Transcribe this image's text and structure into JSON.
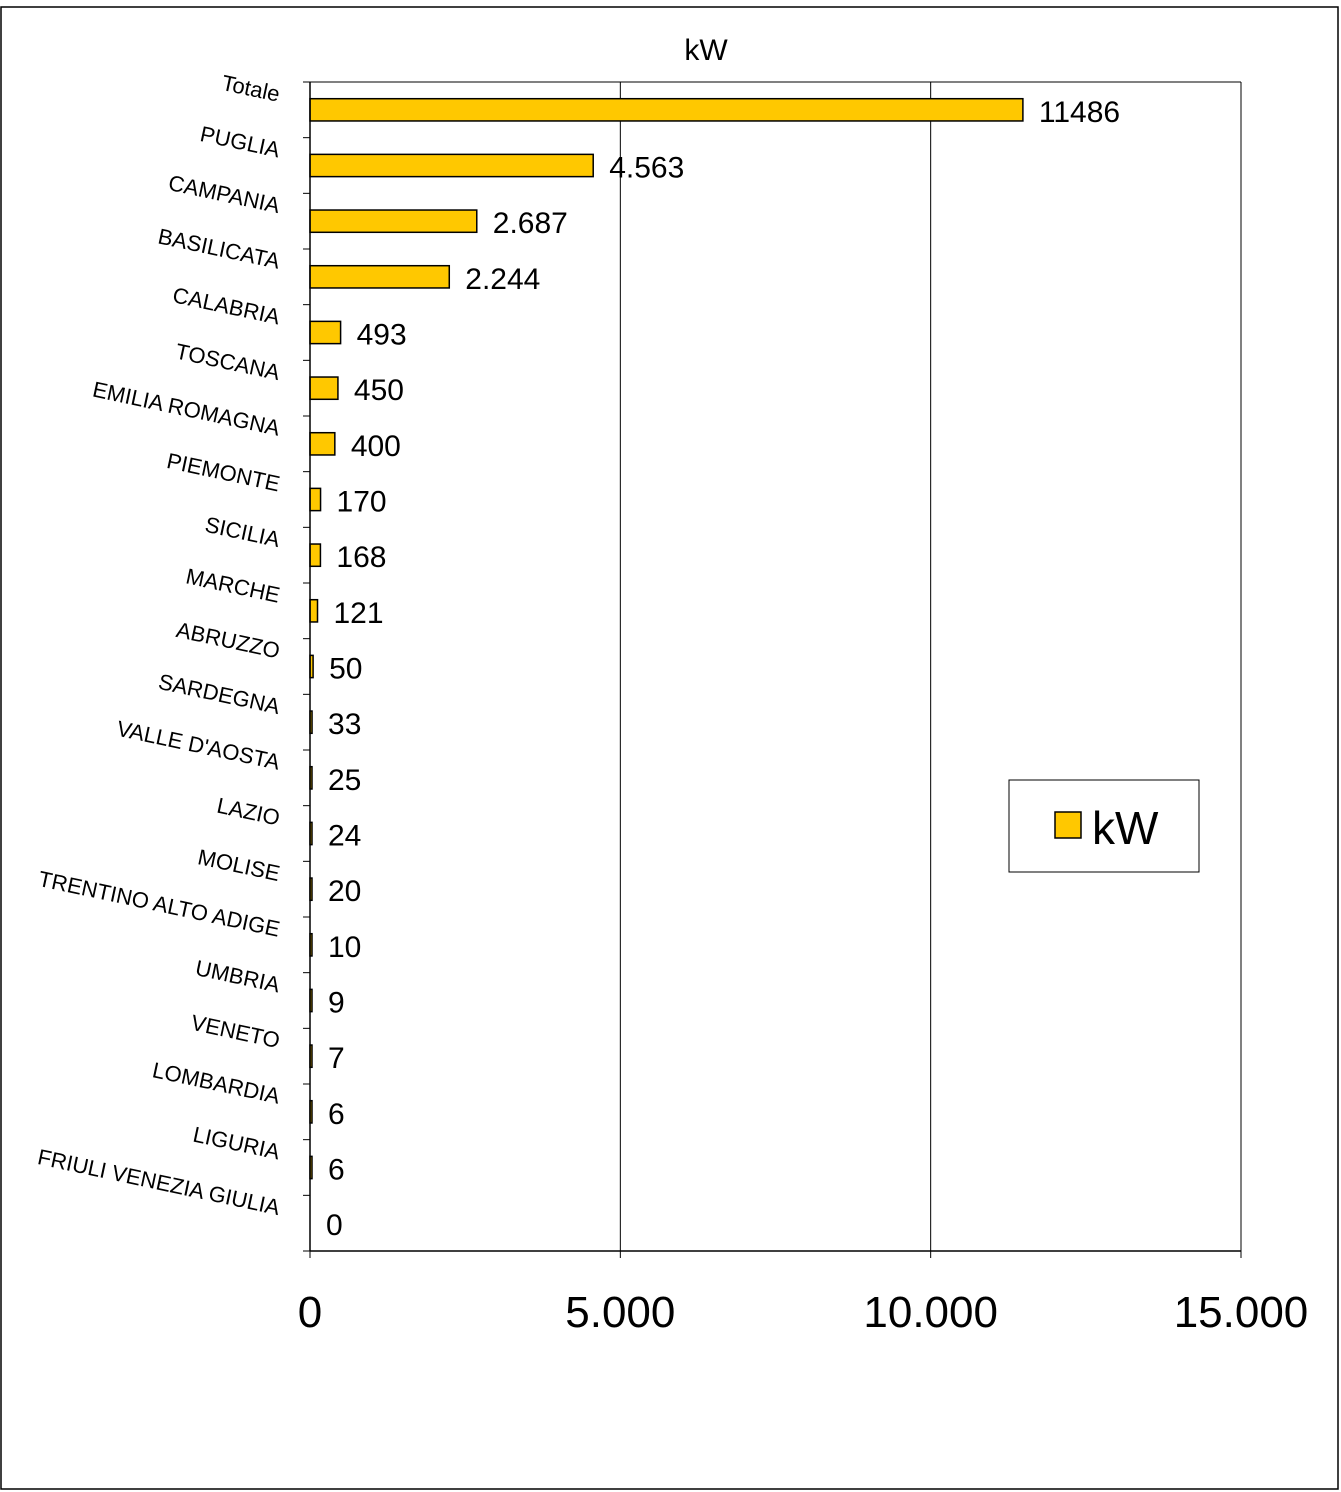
{
  "chart_data": {
    "type": "bar",
    "orientation": "horizontal",
    "title": "kW",
    "categories": [
      "Totale",
      "PUGLIA",
      "CAMPANIA",
      "BASILICATA",
      "CALABRIA",
      "TOSCANA",
      "EMILIA ROMAGNA",
      "PIEMONTE",
      "SICILIA",
      "MARCHE",
      "ABRUZZO",
      "SARDEGNA",
      "VALLE D'AOSTA",
      "LAZIO",
      "MOLISE",
      "TRENTINO ALTO ADIGE",
      "UMBRIA",
      "VENETO",
      "LOMBARDIA",
      "LIGURIA",
      "FRIULI VENEZIA GIULIA"
    ],
    "series": [
      {
        "name": "kW",
        "values": [
          11486,
          4563,
          2687,
          2244,
          493,
          450,
          400,
          170,
          168,
          121,
          50,
          33,
          25,
          24,
          20,
          10,
          9,
          7,
          6,
          6,
          0
        ],
        "value_labels": [
          "11486",
          "4.563",
          "2.687",
          "2.244",
          "493",
          "450",
          "400",
          "170",
          "168",
          "121",
          "50",
          "33",
          "25",
          "24",
          "20",
          "10",
          "9",
          "7",
          "6",
          "6",
          "0"
        ]
      }
    ],
    "x_ticks": [
      "0",
      "5.000",
      "10.000",
      "15.000"
    ],
    "x_tick_values": [
      0,
      5000,
      10000,
      15000
    ],
    "xlim": [
      0,
      15000
    ],
    "grid": "vertical major",
    "legend": {
      "placement": "right",
      "entries": [
        "kW"
      ]
    },
    "colors": {
      "bar": "#FFC800",
      "bar_border": "#000000",
      "grid": "#000000"
    }
  }
}
